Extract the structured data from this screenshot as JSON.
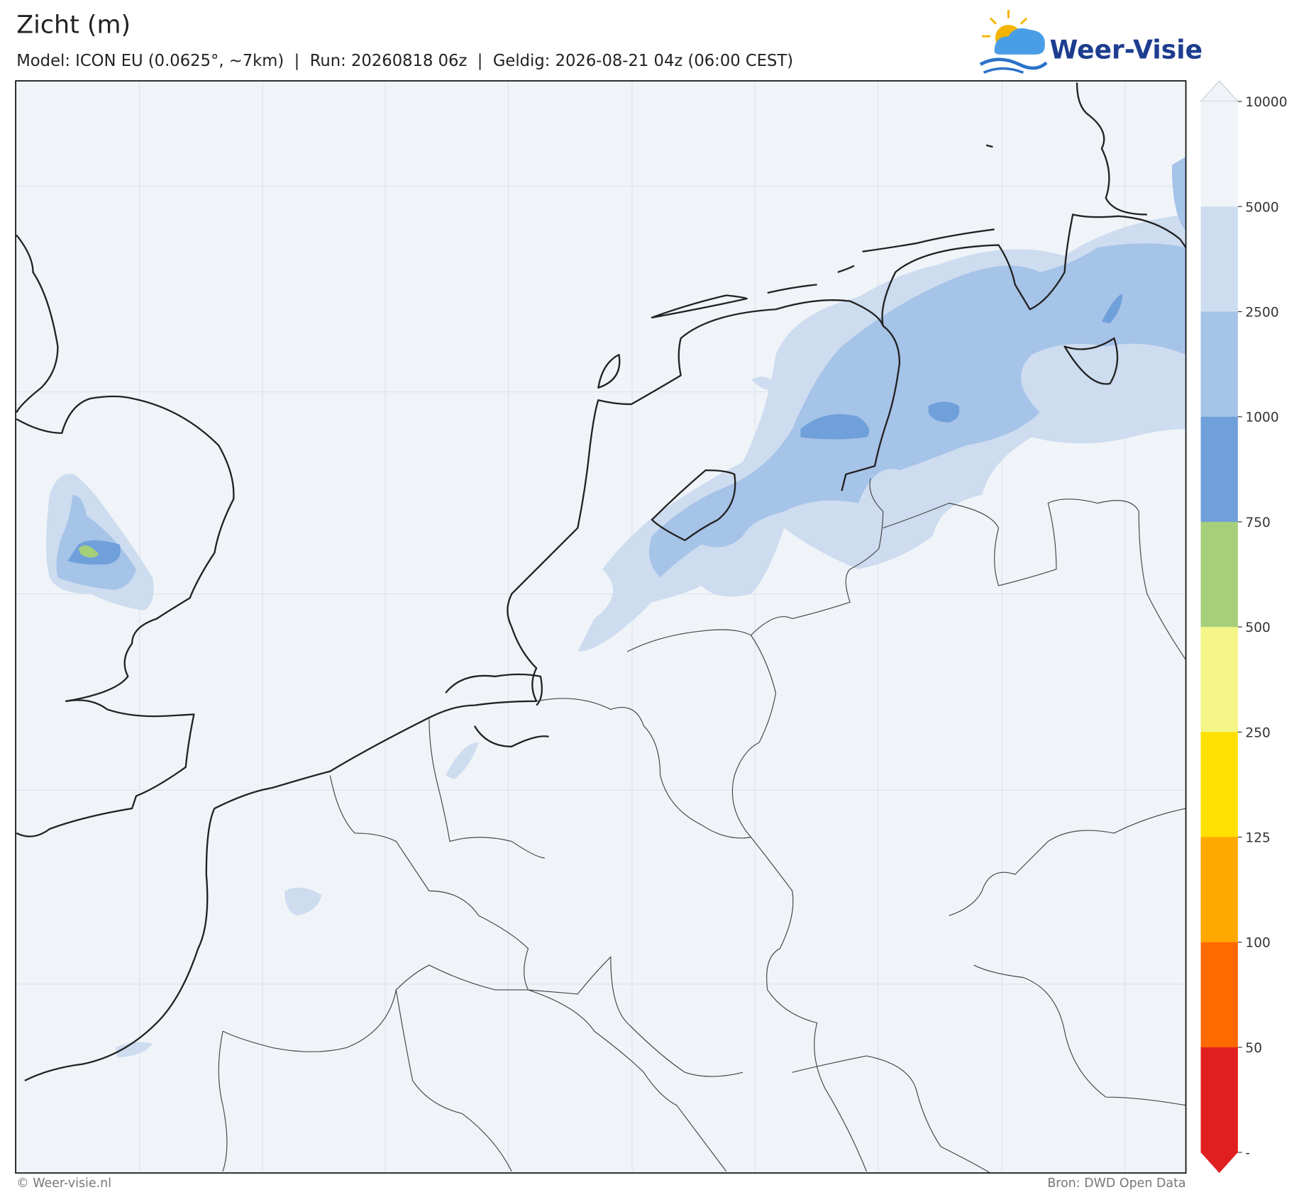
{
  "header": {
    "title": "Zicht (m)",
    "subtitle": "Model: ICON EU (0.0625°, ~7km)  |  Run: 20260818 06z  |  Geldig: 2026-08-21 04z (06:00 CEST)"
  },
  "logo": {
    "text": "Weer-Visie"
  },
  "colorbar": {
    "ticks": [
      10000,
      5000,
      2500,
      1000,
      750,
      500,
      250,
      125,
      100,
      50
    ],
    "bottom_label": "-",
    "colors": [
      "#f0f4f9",
      "#cddcef",
      "#a6c3e8",
      "#6fa0da",
      "#a6cf7a",
      "#f4f487",
      "#ffe000",
      "#ffa800",
      "#ff6a00",
      "#e02020"
    ],
    "over_color": "#f0f4f9",
    "under_color": "#e02020"
  },
  "footer": {
    "left": "© Weer-visie.nl",
    "right": "Bron: DWD Open Data"
  }
}
